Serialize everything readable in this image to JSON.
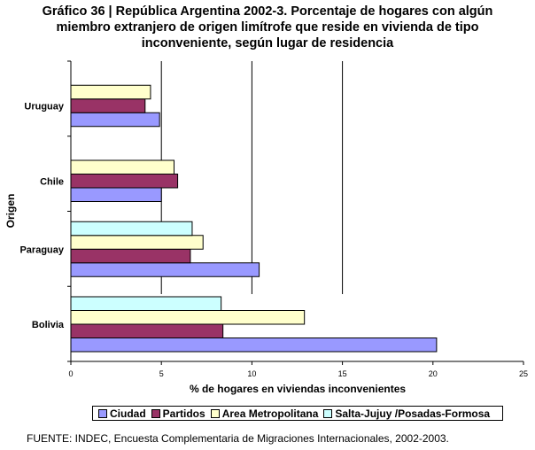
{
  "chart_data": {
    "type": "bar",
    "orientation": "horizontal",
    "title_lines": [
      "Gráfico 36 | República Argentina 2002-3. Porcentaje de hogares con algún",
      "miembro extranjero de origen limítrofe que reside en vivienda de tipo",
      "inconveniente, según lugar de residencia"
    ],
    "xlabel": "% de hogares en viviendas inconvenientes",
    "ylabel": "Origen",
    "xlim": [
      0,
      25
    ],
    "x_ticks": [
      "0",
      "5",
      "10",
      "15",
      "20",
      "25"
    ],
    "categories": [
      "Uruguay",
      "Chile",
      "Paraguay",
      "Bolivia"
    ],
    "series": [
      {
        "name": "Ciudad",
        "color": "#9999FF",
        "values": [
          4.9,
          5.0,
          10.4,
          20.2
        ]
      },
      {
        "name": "Partidos",
        "color": "#993366",
        "values": [
          4.1,
          5.9,
          6.6,
          8.4
        ]
      },
      {
        "name": "Area Metropolitana",
        "color": "#FFFFCC",
        "values": [
          4.4,
          5.7,
          7.3,
          12.9
        ]
      },
      {
        "name": "Salta-Jujuy /Posadas-Formosa",
        "color": "#CCFFFF",
        "values": [
          null,
          null,
          6.7,
          8.3
        ]
      }
    ],
    "reference_lines": [
      5,
      10,
      15
    ],
    "legend_position": "bottom"
  },
  "source_note": "FUENTE: INDEC, Encuesta Complementaria de Migraciones Internacionales, 2002-2003."
}
